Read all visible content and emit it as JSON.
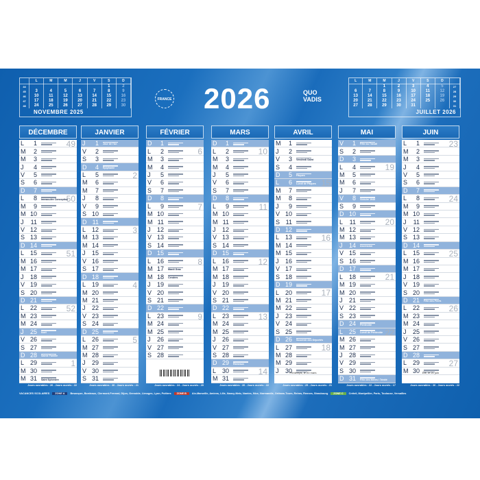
{
  "year": "2026",
  "brand": {
    "logo": "QUO VADIS",
    "seal": "FRANCE"
  },
  "mini_left": {
    "title": "NOVEMBRE 2025",
    "headers": [
      "L",
      "M",
      "M",
      "J",
      "V",
      "S",
      "D"
    ],
    "weeks": [
      "44",
      "45",
      "46",
      "47",
      "48"
    ],
    "rows": [
      [
        "",
        "",
        "",
        "",
        "",
        "1",
        "2"
      ],
      [
        "3",
        "4",
        "5",
        "6",
        "7",
        "8",
        "9"
      ],
      [
        "10",
        "11",
        "12",
        "13",
        "14",
        "15",
        "16"
      ],
      [
        "17",
        "18",
        "19",
        "20",
        "21",
        "22",
        "23"
      ],
      [
        "24",
        "25",
        "26",
        "27",
        "28",
        "29",
        "30"
      ]
    ]
  },
  "mini_right": {
    "title": "JUILLET 2026",
    "headers": [
      "L",
      "M",
      "M",
      "J",
      "V",
      "S",
      "D"
    ],
    "weeks": [
      "27",
      "28",
      "29",
      "30",
      "31"
    ],
    "rows": [
      [
        "",
        "",
        "1",
        "2",
        "3",
        "4",
        "5"
      ],
      [
        "6",
        "7",
        "8",
        "9",
        "10",
        "11",
        "12"
      ],
      [
        "13",
        "14",
        "15",
        "16",
        "17",
        "18",
        "19"
      ],
      [
        "20",
        "21",
        "22",
        "23",
        "24",
        "25",
        "26"
      ],
      [
        "27",
        "28",
        "29",
        "30",
        "31",
        "",
        ""
      ]
    ]
  },
  "months": [
    {
      "name": "DÉCEMBRE 2025",
      "ouvrables": "Jours ouvrables : 26 - Jours ouvrés : 22",
      "days": [
        [
          "L",
          1
        ],
        [
          "M",
          2
        ],
        [
          "M",
          3
        ],
        [
          "J",
          4
        ],
        [
          "V",
          5
        ],
        [
          "S",
          6
        ],
        [
          "D",
          7
        ],
        [
          "L",
          8,
          "Immaculée Conception"
        ],
        [
          "M",
          9
        ],
        [
          "M",
          10
        ],
        [
          "J",
          11
        ],
        [
          "V",
          12
        ],
        [
          "S",
          13
        ],
        [
          "D",
          14
        ],
        [
          "L",
          15
        ],
        [
          "M",
          16
        ],
        [
          "M",
          17
        ],
        [
          "J",
          18
        ],
        [
          "V",
          19
        ],
        [
          "S",
          20
        ],
        [
          "D",
          21
        ],
        [
          "L",
          22
        ],
        [
          "M",
          23
        ],
        [
          "M",
          24
        ],
        [
          "J",
          25,
          "Noël"
        ],
        [
          "V",
          26
        ],
        [
          "S",
          27
        ],
        [
          "D",
          28,
          "Sainte Famille"
        ],
        [
          "L",
          29
        ],
        [
          "M",
          30
        ],
        [
          "M",
          31,
          "Saint Sylvestre"
        ]
      ],
      "holidays": [
        25
      ],
      "weeks": {
        "1": "49",
        "8": "50",
        "15": "51",
        "22": "52",
        "29": "1"
      }
    },
    {
      "name": "JANVIER",
      "ouvrables": "Jours ouvrables : 26 - Jours ouvrés : 21",
      "days": [
        [
          "J",
          1,
          "Jour de l'An"
        ],
        [
          "V",
          2
        ],
        [
          "S",
          3
        ],
        [
          "D",
          4,
          "Épiphanie"
        ],
        [
          "L",
          5
        ],
        [
          "M",
          6
        ],
        [
          "M",
          7
        ],
        [
          "J",
          8
        ],
        [
          "V",
          9
        ],
        [
          "S",
          10
        ],
        [
          "D",
          11
        ],
        [
          "L",
          12
        ],
        [
          "M",
          13
        ],
        [
          "M",
          14
        ],
        [
          "J",
          15
        ],
        [
          "V",
          16
        ],
        [
          "S",
          17
        ],
        [
          "D",
          18
        ],
        [
          "L",
          19
        ],
        [
          "M",
          20
        ],
        [
          "M",
          21
        ],
        [
          "J",
          22
        ],
        [
          "V",
          23
        ],
        [
          "S",
          24
        ],
        [
          "D",
          25
        ],
        [
          "L",
          26
        ],
        [
          "M",
          27
        ],
        [
          "M",
          28
        ],
        [
          "J",
          29
        ],
        [
          "V",
          30
        ],
        [
          "S",
          31
        ]
      ],
      "holidays": [
        1
      ],
      "weeks": {
        "5": "2",
        "12": "3",
        "19": "4",
        "26": "5"
      }
    },
    {
      "name": "FÉVRIER",
      "ouvrables": "Jours ouvrables : 24 - Jours ouvrés : 20",
      "days": [
        [
          "D",
          1
        ],
        [
          "L",
          2
        ],
        [
          "M",
          3
        ],
        [
          "M",
          4
        ],
        [
          "J",
          5
        ],
        [
          "V",
          6
        ],
        [
          "S",
          7
        ],
        [
          "D",
          8
        ],
        [
          "L",
          9
        ],
        [
          "M",
          10
        ],
        [
          "M",
          11
        ],
        [
          "J",
          12
        ],
        [
          "V",
          13
        ],
        [
          "S",
          14
        ],
        [
          "D",
          15
        ],
        [
          "L",
          16
        ],
        [
          "M",
          17,
          "Mardi Gras"
        ],
        [
          "M",
          18,
          "Cendres"
        ],
        [
          "J",
          19
        ],
        [
          "V",
          20
        ],
        [
          "S",
          21
        ],
        [
          "D",
          22
        ],
        [
          "L",
          23
        ],
        [
          "M",
          24
        ],
        [
          "M",
          25
        ],
        [
          "J",
          26
        ],
        [
          "V",
          27
        ],
        [
          "S",
          28
        ]
      ],
      "holidays": [],
      "weeks": {
        "2": "6",
        "9": "7",
        "16": "8",
        "23": "9"
      }
    },
    {
      "name": "MARS",
      "ouvrables": "Jours ouvrables : 26 - Jours ouvrés : 22",
      "days": [
        [
          "D",
          1
        ],
        [
          "L",
          2
        ],
        [
          "M",
          3
        ],
        [
          "M",
          4
        ],
        [
          "J",
          5
        ],
        [
          "V",
          6
        ],
        [
          "S",
          7
        ],
        [
          "D",
          8
        ],
        [
          "L",
          9
        ],
        [
          "M",
          10
        ],
        [
          "M",
          11
        ],
        [
          "J",
          12
        ],
        [
          "V",
          13
        ],
        [
          "S",
          14
        ],
        [
          "D",
          15
        ],
        [
          "L",
          16
        ],
        [
          "M",
          17
        ],
        [
          "M",
          18
        ],
        [
          "J",
          19
        ],
        [
          "V",
          20
        ],
        [
          "S",
          21
        ],
        [
          "D",
          22
        ],
        [
          "L",
          23
        ],
        [
          "M",
          24
        ],
        [
          "M",
          25
        ],
        [
          "J",
          26
        ],
        [
          "V",
          27
        ],
        [
          "S",
          28
        ],
        [
          "D",
          29,
          "Rameaux"
        ],
        [
          "L",
          30
        ],
        [
          "M",
          31
        ]
      ],
      "holidays": [],
      "weeks": {
        "2": "10",
        "9": "11",
        "16": "12",
        "23": "13",
        "30": "14"
      }
    },
    {
      "name": "AVRIL",
      "ouvrables": "Jours ouvrables : 25 - Jours ouvrés : 21",
      "extra": "Printemps, le 20 mars",
      "days": [
        [
          "M",
          1
        ],
        [
          "J",
          2
        ],
        [
          "V",
          3,
          "Vendredi Saint"
        ],
        [
          "S",
          4
        ],
        [
          "D",
          5,
          "Pâques"
        ],
        [
          "L",
          6,
          "Lundi de Pâques"
        ],
        [
          "M",
          7
        ],
        [
          "M",
          8
        ],
        [
          "J",
          9
        ],
        [
          "V",
          10
        ],
        [
          "S",
          11
        ],
        [
          "D",
          12
        ],
        [
          "L",
          13
        ],
        [
          "M",
          14
        ],
        [
          "M",
          15
        ],
        [
          "J",
          16
        ],
        [
          "V",
          17
        ],
        [
          "S",
          18
        ],
        [
          "D",
          19
        ],
        [
          "L",
          20
        ],
        [
          "M",
          21
        ],
        [
          "M",
          22
        ],
        [
          "J",
          23
        ],
        [
          "V",
          24
        ],
        [
          "S",
          25
        ],
        [
          "D",
          26,
          "Souvenir des Déportés"
        ],
        [
          "L",
          27
        ],
        [
          "M",
          28
        ],
        [
          "M",
          29
        ],
        [
          "J",
          30
        ]
      ],
      "holidays": [
        6
      ],
      "weeks": {
        "6": "15",
        "13": "16",
        "20": "17",
        "27": "18"
      }
    },
    {
      "name": "MAI",
      "ouvrables": "Jours ouvrables : 22 - Jours ouvrés : 17",
      "days": [
        [
          "V",
          1,
          "Fête du Travail"
        ],
        [
          "S",
          2
        ],
        [
          "D",
          3
        ],
        [
          "L",
          4
        ],
        [
          "M",
          5
        ],
        [
          "M",
          6
        ],
        [
          "J",
          7
        ],
        [
          "V",
          8,
          "Victoire 1945"
        ],
        [
          "S",
          9
        ],
        [
          "D",
          10
        ],
        [
          "L",
          11
        ],
        [
          "M",
          12
        ],
        [
          "M",
          13
        ],
        [
          "J",
          14,
          "Ascension"
        ],
        [
          "V",
          15
        ],
        [
          "S",
          16
        ],
        [
          "D",
          17
        ],
        [
          "L",
          18
        ],
        [
          "M",
          19
        ],
        [
          "M",
          20
        ],
        [
          "J",
          21
        ],
        [
          "V",
          22
        ],
        [
          "S",
          23
        ],
        [
          "D",
          24,
          "Pentecôte"
        ],
        [
          "L",
          25,
          "Lundi de Pentecôte"
        ],
        [
          "M",
          26
        ],
        [
          "M",
          27
        ],
        [
          "J",
          28
        ],
        [
          "V",
          29
        ],
        [
          "S",
          30
        ],
        [
          "D",
          31,
          "Fête des Mères / Trinité"
        ]
      ],
      "holidays": [
        1,
        8,
        14,
        25
      ],
      "weeks": {
        "4": "19",
        "11": "20",
        "18": "21",
        "25": "22"
      }
    },
    {
      "name": "JUIN",
      "ouvrables": "Jours ouvrables : 26 - Jours ouvrés : 22",
      "extra": "Été, le 21 juin",
      "days": [
        [
          "L",
          1
        ],
        [
          "M",
          2
        ],
        [
          "M",
          3
        ],
        [
          "J",
          4
        ],
        [
          "V",
          5
        ],
        [
          "S",
          6
        ],
        [
          "D",
          7
        ],
        [
          "L",
          8
        ],
        [
          "M",
          9
        ],
        [
          "M",
          10
        ],
        [
          "J",
          11
        ],
        [
          "V",
          12
        ],
        [
          "S",
          13
        ],
        [
          "D",
          14
        ],
        [
          "L",
          15
        ],
        [
          "M",
          16
        ],
        [
          "M",
          17
        ],
        [
          "J",
          18
        ],
        [
          "V",
          19
        ],
        [
          "S",
          20
        ],
        [
          "D",
          21,
          "Fête des Pères"
        ],
        [
          "L",
          22
        ],
        [
          "M",
          23
        ],
        [
          "M",
          24
        ],
        [
          "J",
          25
        ],
        [
          "V",
          26
        ],
        [
          "S",
          27
        ],
        [
          "D",
          28
        ],
        [
          "L",
          29
        ],
        [
          "M",
          30
        ]
      ],
      "holidays": [],
      "weeks": {
        "1": "23",
        "8": "24",
        "15": "25",
        "22": "26",
        "29": "27"
      }
    }
  ],
  "footer": {
    "title": "VACANCES SCOLAIRES",
    "zones": [
      {
        "label": "ZONE A",
        "color": "#1f3d7a",
        "cities": "Besançon, Bordeaux, Clermont-Ferrand, Dijon, Grenoble, Limoges, Lyon, Poitiers"
      },
      {
        "label": "ZONE B",
        "color": "#c0392b",
        "cities": "Aix-Marseille, Amiens, Lille, Nancy-Metz, Nantes, Nice, Normandie, Orléans-Tours, Reims, Rennes, Strasbourg"
      },
      {
        "label": "ZONE C",
        "color": "#6ab04c",
        "cities": "Créteil, Montpellier, Paris, Toulouse, Versailles"
      }
    ]
  },
  "colors": {
    "background": "#1565b0",
    "offday": "#90b3dc",
    "week_number": "#a9b1bc"
  }
}
